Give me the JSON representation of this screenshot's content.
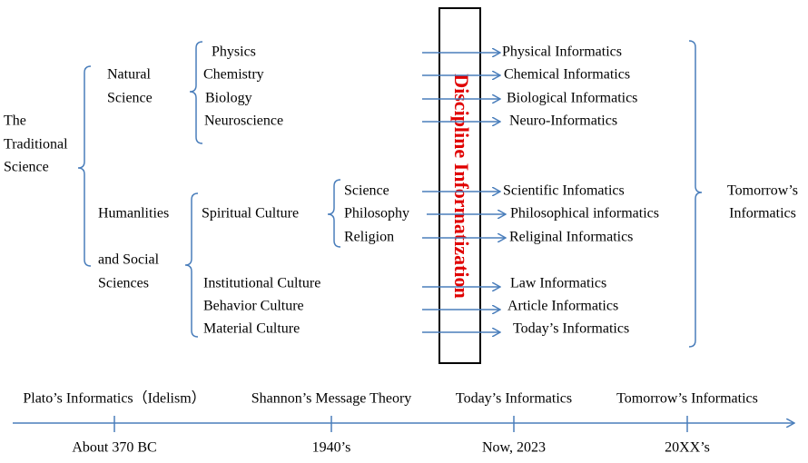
{
  "root": {
    "lines": [
      "The",
      "Traditional",
      "Science"
    ]
  },
  "natural_science": {
    "lines": [
      "Natural",
      "Science"
    ],
    "subjects": [
      "Physics",
      "Chemistry",
      "Biology",
      "Neuroscience"
    ]
  },
  "humanities": {
    "lines": [
      "Humanlities",
      "and Social",
      "Sciences"
    ]
  },
  "spiritual_culture": {
    "label": "Spiritual Culture",
    "subjects": [
      "Science",
      "Philosophy",
      "Religion"
    ]
  },
  "other_cultures": [
    "Institutional Culture",
    "Behavior Culture",
    "Material Culture"
  ],
  "banner": "Discipline Informatization",
  "informatics": [
    "Physical Informatics",
    "Chemical Informatics",
    "Biological Informatics",
    "Neuro-Informatics",
    "Scientific Infomatics",
    "Philosophical informatics",
    "Religinal Informatics",
    "Law Informatics",
    "Article Informatics",
    "Today’s Informatics"
  ],
  "future": {
    "lines": [
      "Tomorrow’s",
      "Informatics"
    ]
  },
  "timeline": {
    "events": [
      {
        "label": "Plato’s Informatics（Idelism）",
        "date": "About 370 BC"
      },
      {
        "label": "Shannon’s Message Theory",
        "date": "1940’s"
      },
      {
        "label": "Today’s Informatics",
        "date": "Now, 2023"
      },
      {
        "label": "Tomorrow’s Informatics",
        "date": "20XX’s"
      }
    ]
  }
}
